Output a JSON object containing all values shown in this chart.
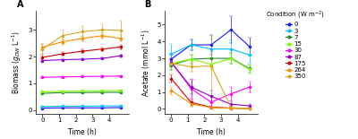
{
  "time": [
    0,
    1.2,
    2.4,
    3.6,
    4.7
  ],
  "conditions": [
    "0",
    "3",
    "7",
    "15",
    "30",
    "87",
    "175",
    "264",
    "350"
  ],
  "colors": [
    "#1a1aff",
    "#00bfff",
    "#228B22",
    "#7CFC00",
    "#ff00ff",
    "#9400D3",
    "#CC0000",
    "#FF8C00",
    "#DAA520"
  ],
  "biomass": {
    "0": [
      0.07,
      0.08,
      0.08,
      0.08,
      0.09
    ],
    "3": [
      0.13,
      0.14,
      0.14,
      0.15,
      0.15
    ],
    "7": [
      0.62,
      0.65,
      0.65,
      0.66,
      0.66
    ],
    "15": [
      0.68,
      0.7,
      0.71,
      0.72,
      0.73
    ],
    "30": [
      1.22,
      1.24,
      1.25,
      1.26,
      1.27
    ],
    "87": [
      1.85,
      1.88,
      1.9,
      1.93,
      2.03
    ],
    "175": [
      1.97,
      2.1,
      2.2,
      2.28,
      2.36
    ],
    "264": [
      2.35,
      2.55,
      2.68,
      2.78,
      2.68
    ],
    "350": [
      2.28,
      2.78,
      2.93,
      3.0,
      2.98
    ]
  },
  "biomass_err": {
    "0": [
      0.01,
      0.01,
      0.01,
      0.01,
      0.01
    ],
    "3": [
      0.02,
      0.01,
      0.01,
      0.01,
      0.01
    ],
    "7": [
      0.02,
      0.02,
      0.02,
      0.02,
      0.02
    ],
    "15": [
      0.03,
      0.02,
      0.02,
      0.02,
      0.02
    ],
    "30": [
      0.03,
      0.03,
      0.03,
      0.03,
      0.03
    ],
    "87": [
      0.05,
      0.04,
      0.04,
      0.04,
      0.05
    ],
    "175": [
      0.1,
      0.08,
      0.07,
      0.07,
      0.08
    ],
    "264": [
      0.12,
      0.1,
      0.1,
      0.1,
      0.12
    ],
    "350": [
      0.18,
      0.18,
      0.2,
      0.2,
      0.35
    ]
  },
  "acetate": {
    "0": [
      2.95,
      3.8,
      3.8,
      4.7,
      3.7
    ],
    "3": [
      3.25,
      3.8,
      3.55,
      3.55,
      3.2
    ],
    "7": [
      2.6,
      2.95,
      3.0,
      3.0,
      2.4
    ],
    "15": [
      2.7,
      2.95,
      2.65,
      2.98,
      2.35
    ],
    "30": [
      2.8,
      1.2,
      0.4,
      0.9,
      1.3
    ],
    "87": [
      2.75,
      1.3,
      0.75,
      0.28,
      0.18
    ],
    "175": [
      1.8,
      0.38,
      0.1,
      0.05,
      0.02
    ],
    "264": [
      1.1,
      0.3,
      0.08,
      0.04,
      0.02
    ],
    "350": [
      2.7,
      2.5,
      2.55,
      0.08,
      0.02
    ]
  },
  "acetate_err": {
    "0": [
      0.25,
      0.3,
      0.6,
      0.8,
      0.55
    ],
    "3": [
      0.6,
      0.3,
      0.6,
      0.5,
      0.45
    ],
    "7": [
      0.3,
      0.25,
      0.4,
      0.3,
      0.25
    ],
    "15": [
      0.35,
      0.25,
      0.35,
      0.3,
      0.25
    ],
    "30": [
      0.2,
      0.6,
      0.35,
      0.4,
      0.3
    ],
    "87": [
      0.2,
      0.4,
      0.35,
      0.15,
      0.1
    ],
    "175": [
      0.25,
      0.18,
      0.08,
      0.04,
      0.02
    ],
    "264": [
      0.2,
      0.15,
      0.06,
      0.04,
      0.02
    ],
    "350": [
      0.25,
      0.3,
      1.8,
      0.06,
      0.02
    ]
  },
  "legend_labels": [
    "0",
    "3",
    "7",
    "15",
    "30",
    "87",
    "175",
    "264",
    "350"
  ],
  "bg_color": "#ffffff"
}
